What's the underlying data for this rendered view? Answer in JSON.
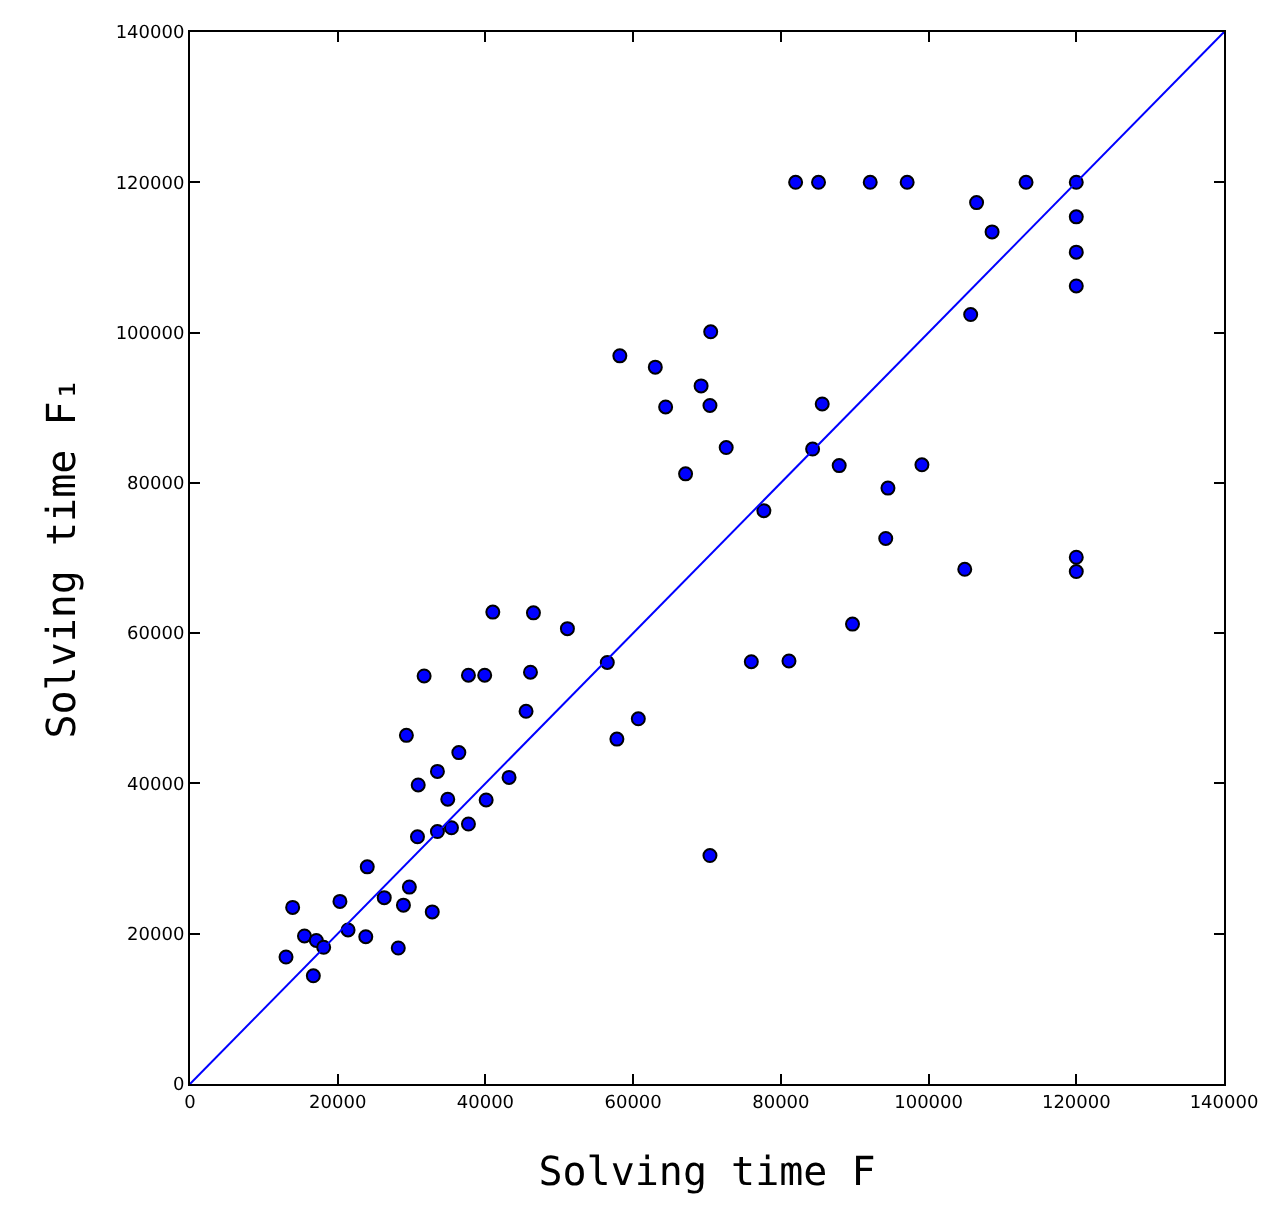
{
  "chart_data": {
    "type": "scatter",
    "xlabel": "Solving time F",
    "ylabel": "Solving time F₁",
    "xlim": [
      0,
      140000
    ],
    "ylim": [
      0,
      140000
    ],
    "xticks": [
      0,
      20000,
      40000,
      60000,
      80000,
      100000,
      120000,
      140000
    ],
    "yticks": [
      0,
      20000,
      40000,
      60000,
      80000,
      100000,
      120000,
      140000
    ],
    "series": [
      {
        "marker": "circle",
        "color": "#0000ff",
        "x": [
          13000,
          13900,
          15500,
          16700,
          17100,
          18100,
          20300,
          21400,
          23800,
          24000,
          26300,
          28200,
          28900,
          29700,
          29300,
          30800,
          30900,
          31700,
          32800,
          33500,
          33500,
          34900,
          35400,
          36400,
          37700,
          37700,
          39900,
          40100,
          41000,
          43200,
          45500,
          46100,
          46500,
          51100,
          56500,
          57800,
          60700,
          58200,
          63000,
          70500,
          69200,
          64400,
          70400,
          72600,
          67100,
          84300,
          85600,
          87900,
          94500,
          99100,
          94200,
          104900,
          89700,
          76000,
          81100,
          77700,
          105700,
          70400,
          82000,
          85100,
          92100,
          97100,
          113200,
          120000,
          106500,
          108600,
          120000,
          120000,
          120000,
          120000,
          120000
        ],
        "values": [
          16900,
          23500,
          19700,
          14400,
          19100,
          18200,
          24300,
          20500,
          19600,
          28900,
          24800,
          18100,
          23800,
          26200,
          46400,
          32900,
          39800,
          54300,
          22900,
          33600,
          41600,
          37900,
          34100,
          44100,
          34600,
          54400,
          54400,
          37800,
          62800,
          40800,
          49600,
          54800,
          62700,
          60600,
          56100,
          45900,
          48600,
          96900,
          95400,
          100100,
          92900,
          90100,
          90300,
          84700,
          81200,
          84500,
          90500,
          82300,
          79300,
          82400,
          72600,
          68500,
          61200,
          56200,
          56300,
          76300,
          102400,
          30400,
          120000,
          120000,
          120000,
          120000,
          120000,
          120000,
          117300,
          113400,
          115400,
          110700,
          106200,
          70100,
          68200
        ]
      },
      {
        "type": "line",
        "color": "#0000ff",
        "line_style": "solid",
        "x": [
          0,
          140000
        ],
        "values": [
          0,
          140000
        ]
      }
    ]
  }
}
